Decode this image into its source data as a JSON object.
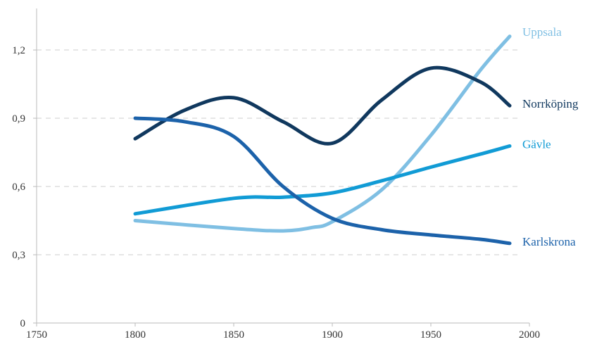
{
  "chart_data": {
    "type": "line",
    "title": "",
    "xlabel": "",
    "ylabel": "",
    "xlim": [
      1750,
      2000
    ],
    "ylim": [
      0,
      1.35
    ],
    "x_ticks": [
      1750,
      1800,
      1850,
      1900,
      1950,
      2000
    ],
    "x_tick_labels": [
      "1750",
      "1800",
      "1850",
      "1900",
      "1950",
      "2000"
    ],
    "y_ticks": [
      0,
      0.3,
      0.6,
      0.9,
      1.2
    ],
    "y_tick_labels": [
      "0",
      "0,3",
      "0,6",
      "0,9",
      "1,2"
    ],
    "grid": "horizontal dashed",
    "legend": "labels at line ends",
    "series": [
      {
        "name": "Uppsala",
        "color": "#7fbfe3",
        "x": [
          1800,
          1850,
          1875,
          1890,
          1900,
          1925,
          1950,
          1975,
          1990
        ],
        "values": [
          0.45,
          0.415,
          0.405,
          0.42,
          0.445,
          0.585,
          0.825,
          1.11,
          1.26
        ]
      },
      {
        "name": "Norrköping",
        "color": "#10385e",
        "x": [
          1800,
          1825,
          1850,
          1875,
          1900,
          1925,
          1950,
          1975,
          1990
        ],
        "values": [
          0.81,
          0.935,
          0.99,
          0.885,
          0.79,
          0.98,
          1.12,
          1.06,
          0.955
        ]
      },
      {
        "name": "Gävle",
        "color": "#119bd5",
        "x": [
          1800,
          1850,
          1875,
          1900,
          1925,
          1950,
          1975,
          1990
        ],
        "values": [
          0.48,
          0.548,
          0.553,
          0.572,
          0.625,
          0.685,
          0.742,
          0.778
        ]
      },
      {
        "name": "Karlskrona",
        "color": "#1c62aa",
        "x": [
          1800,
          1825,
          1850,
          1875,
          1900,
          1925,
          1950,
          1975,
          1990
        ],
        "values": [
          0.9,
          0.885,
          0.82,
          0.6,
          0.46,
          0.41,
          0.387,
          0.368,
          0.35
        ]
      }
    ]
  }
}
